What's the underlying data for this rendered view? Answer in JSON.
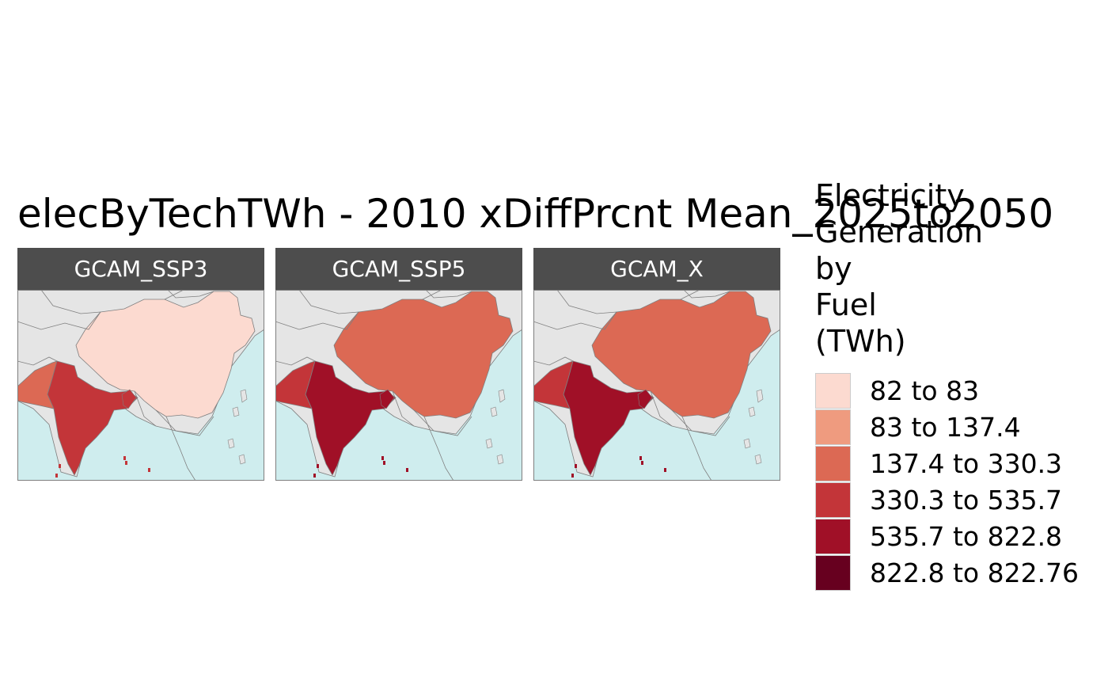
{
  "title": "elecByTechTWh - 2010 xDiffPrcnt Mean_2025to2050",
  "legend": {
    "title_lines": [
      "Electricity",
      "Generation",
      "by",
      "Fuel",
      "(TWh)"
    ],
    "items": [
      {
        "label": "82 to 83",
        "color": "#fcdad0"
      },
      {
        "label": "83 to 137.4",
        "color": "#ef9b7f"
      },
      {
        "label": "137.4 to 330.3",
        "color": "#dc6954"
      },
      {
        "label": "330.3 to 535.7",
        "color": "#c33539"
      },
      {
        "label": "535.7 to 822.8",
        "color": "#a01027"
      },
      {
        "label": "822.8 to 822.76",
        "color": "#67001f"
      }
    ]
  },
  "colors": {
    "ocean": "#cfedee",
    "land": "#e5e5e5",
    "border": "#7f7f7f",
    "strip": "#4d4d4d"
  },
  "panels": [
    {
      "label": "GCAM_SSP3",
      "regions": {
        "china": "#fcdad0",
        "india": "#c33539",
        "pakistan": "#dc6954"
      }
    },
    {
      "label": "GCAM_SSP5",
      "regions": {
        "china": "#dc6954",
        "india": "#a01027",
        "pakistan": "#c33539"
      }
    },
    {
      "label": "GCAM_X",
      "regions": {
        "china": "#dc6954",
        "india": "#a01027",
        "pakistan": "#c33539"
      }
    }
  ]
}
